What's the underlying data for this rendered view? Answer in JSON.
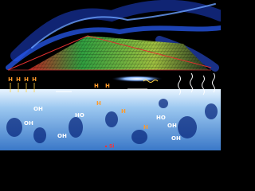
{
  "labels": {
    "h_top": [
      "H",
      "H",
      "H",
      "H"
    ],
    "h_mid": [
      "H",
      "H",
      "H",
      "H",
      "H"
    ],
    "oh": [
      "OH",
      "OH",
      "OH",
      "OH",
      "OH"
    ],
    "ho": [
      "HO",
      "HO"
    ],
    "si": "Si"
  }
}
